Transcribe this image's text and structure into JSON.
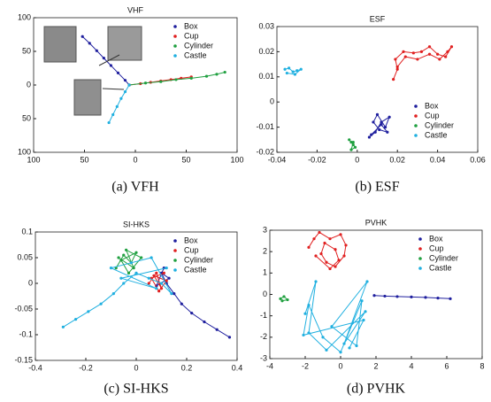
{
  "chart_data": [
    {
      "type": "scatter",
      "title": "VHF",
      "caption": "(a) VFH",
      "legend": "upper right",
      "xlim": [
        -100,
        100
      ],
      "ylim": [
        -100,
        100
      ],
      "xticks": [
        {
          "value": -100,
          "label": "100"
        },
        {
          "value": -50,
          "label": "50"
        },
        0,
        50,
        100
      ],
      "yticks": [
        100,
        50,
        0,
        {
          "value": -50,
          "label": "50"
        },
        {
          "value": -100,
          "label": "100"
        }
      ],
      "series": [
        {
          "name": "Box",
          "color": "#1f1f9e",
          "x": [
            -52,
            -45,
            -38,
            -31,
            -24,
            -17,
            -10,
            -6
          ],
          "y": [
            72,
            62,
            51,
            40,
            29,
            18,
            7,
            0
          ]
        },
        {
          "name": "Cup",
          "color": "#e02020",
          "x": [
            -6,
            5,
            15,
            25,
            35,
            45,
            55
          ],
          "y": [
            0,
            2,
            4,
            6,
            8,
            10,
            12
          ]
        },
        {
          "name": "Cylinder",
          "color": "#20a040",
          "x": [
            -6,
            10,
            25,
            40,
            55,
            70,
            80,
            88
          ],
          "y": [
            0,
            3,
            5,
            8,
            10,
            13,
            16,
            19
          ]
        },
        {
          "name": "Castle",
          "color": "#20b0e0",
          "x": [
            -6,
            -10,
            -14,
            -18,
            -22,
            -26
          ],
          "y": [
            0,
            -10,
            -20,
            -32,
            -44,
            -56
          ]
        }
      ]
    },
    {
      "type": "scatter",
      "title": "ESF",
      "caption": "(b) ESF",
      "legend": "lower right",
      "xlim": [
        -0.04,
        0.06
      ],
      "ylim": [
        -0.02,
        0.03
      ],
      "xticks": [
        -0.04,
        -0.02,
        0,
        0.02,
        0.04,
        0.06
      ],
      "yticks": [
        -0.02,
        -0.01,
        0,
        0.01,
        0.02,
        0.03
      ],
      "series": [
        {
          "name": "Box",
          "color": "#1f1f9e",
          "x": [
            0.006,
            0.009,
            0.012,
            0.016,
            0.014,
            0.01,
            0.008,
            0.011,
            0.015,
            0.012,
            0.007
          ],
          "y": [
            -0.014,
            -0.012,
            -0.008,
            -0.006,
            -0.01,
            -0.005,
            -0.008,
            -0.011,
            -0.012,
            -0.009,
            -0.013
          ]
        },
        {
          "name": "Cup",
          "color": "#e02020",
          "x": [
            0.018,
            0.02,
            0.019,
            0.023,
            0.028,
            0.032,
            0.036,
            0.04,
            0.044,
            0.047,
            0.045,
            0.041,
            0.036,
            0.03,
            0.024,
            0.02
          ],
          "y": [
            0.009,
            0.013,
            0.017,
            0.02,
            0.0195,
            0.02,
            0.022,
            0.019,
            0.018,
            0.022,
            0.02,
            0.017,
            0.019,
            0.017,
            0.018,
            0.014
          ]
        },
        {
          "name": "Cylinder",
          "color": "#20a040",
          "x": [
            -0.004,
            -0.003,
            -0.002,
            -0.001,
            -0.003,
            -0.002
          ],
          "y": [
            -0.015,
            -0.016,
            -0.017,
            -0.018,
            -0.019,
            -0.016
          ]
        },
        {
          "name": "Castle",
          "color": "#20b0e0",
          "x": [
            -0.036,
            -0.034,
            -0.032,
            -0.03,
            -0.028,
            -0.031,
            -0.035
          ],
          "y": [
            0.013,
            0.0135,
            0.012,
            0.0125,
            0.013,
            0.011,
            0.0115
          ]
        }
      ]
    },
    {
      "type": "scatter",
      "title": "SI-HKS",
      "caption": "(c) SI-HKS",
      "legend": "upper right",
      "xlim": [
        -0.4,
        0.4
      ],
      "ylim": [
        -0.15,
        0.1
      ],
      "xticks": [
        -0.4,
        -0.2,
        0,
        0.2,
        0.4
      ],
      "yticks": [
        -0.15,
        -0.1,
        -0.05,
        0,
        0.05,
        0.1
      ],
      "series": [
        {
          "name": "Box",
          "color": "#1f1f9e",
          "x": [
            0.37,
            0.32,
            0.27,
            0.22,
            0.18,
            0.15,
            0.12,
            0.1,
            0.13,
            0.08,
            0.11
          ],
          "y": [
            -0.105,
            -0.09,
            -0.075,
            -0.058,
            -0.04,
            -0.02,
            0,
            0.02,
            0.01,
            -0.005,
            0.03
          ]
        },
        {
          "name": "Cup",
          "color": "#e02020",
          "x": [
            0.05,
            0.08,
            0.1,
            0.07,
            0.12,
            0.09,
            0.06,
            0.11
          ],
          "y": [
            0,
            0.02,
            -0.01,
            0.015,
            0.005,
            -0.015,
            0.01,
            0.02
          ]
        },
        {
          "name": "Cylinder",
          "color": "#20a040",
          "x": [
            -0.08,
            -0.05,
            -0.02,
            0,
            -0.06,
            -0.03,
            0.02,
            -0.04,
            -0.01,
            -0.07
          ],
          "y": [
            0.03,
            0.055,
            0.04,
            0.06,
            0.045,
            0.02,
            0.05,
            0.065,
            0.03,
            0.05
          ]
        },
        {
          "name": "Castle",
          "color": "#20b0e0",
          "x": [
            -0.29,
            -0.24,
            -0.19,
            -0.14,
            -0.09,
            -0.05,
            0,
            0.05,
            0.1,
            0.14,
            0.06,
            -0.02,
            -0.1,
            0.08,
            -0.06,
            0.12
          ],
          "y": [
            -0.085,
            -0.07,
            -0.055,
            -0.04,
            -0.02,
            0,
            0.02,
            0.01,
            0,
            -0.02,
            0.05,
            0.04,
            0.03,
            -0.01,
            0.01,
            0.03
          ]
        }
      ]
    },
    {
      "type": "scatter",
      "title": "PVHK",
      "caption": "(d) PVHK",
      "legend": "upper right",
      "xlim": [
        -4,
        8
      ],
      "ylim": [
        -3,
        3
      ],
      "xticks": [
        -4,
        -2,
        0,
        2,
        4,
        6,
        8
      ],
      "yticks": [
        -3,
        -2,
        -1,
        0,
        1,
        2,
        3
      ],
      "series": [
        {
          "name": "Box",
          "color": "#1f1f9e",
          "x": [
            1.9,
            2.5,
            3.2,
            4,
            4.8,
            5.5,
            6.2
          ],
          "y": [
            -0.05,
            -0.08,
            -0.1,
            -0.12,
            -0.14,
            -0.17,
            -0.2
          ]
        },
        {
          "name": "Cup",
          "color": "#e02020",
          "x": [
            -1.8,
            -1.5,
            -1.2,
            -0.6,
            0,
            0.3,
            0.2,
            -0.3,
            -0.8,
            -1.1,
            -0.9,
            -0.3,
            -0.1,
            -0.6,
            -1.4
          ],
          "y": [
            2.2,
            2.6,
            2.9,
            2.6,
            2.8,
            2.3,
            1.8,
            1.3,
            1.5,
            1.9,
            2.4,
            2.1,
            1.6,
            1.2,
            1.8
          ]
        },
        {
          "name": "Cylinder",
          "color": "#20a040",
          "x": [
            -3.4,
            -3.2,
            -3,
            -3.3
          ],
          "y": [
            -0.2,
            -0.1,
            -0.25,
            -0.3
          ]
        },
        {
          "name": "Castle",
          "color": "#20b0e0",
          "x": [
            -2,
            -1.4,
            -1.8,
            -0.8,
            1.4,
            0.2,
            1.5,
            -0.5,
            0.9,
            1.2,
            0,
            -1,
            -1.8,
            -2.1,
            1.3,
            0.5
          ],
          "y": [
            -0.9,
            0.6,
            -1.8,
            -2.6,
            -0.8,
            -2.3,
            0.6,
            -1.5,
            -2.4,
            -0.3,
            -2.7,
            -2,
            -0.5,
            -1.9,
            -1.2,
            -2.5
          ]
        }
      ]
    }
  ]
}
